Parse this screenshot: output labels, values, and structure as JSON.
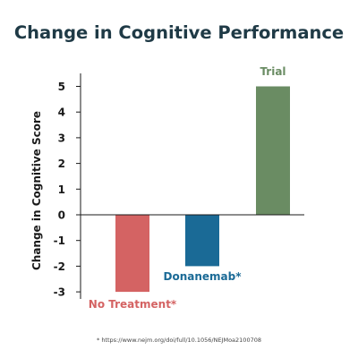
{
  "chart_data": {
    "type": "bar",
    "title": "Change in Cognitive Performance",
    "xlabel": "",
    "ylabel": "Change in Cognitive Score",
    "ylim": [
      -3.5,
      5.5
    ],
    "yticks": [
      "5",
      "4",
      "3",
      "2",
      "1",
      "0",
      "-1",
      "-2",
      "-3"
    ],
    "categories": [
      "No Treatment*",
      "Donanemab*",
      "Trial"
    ],
    "values": [
      -3,
      -2,
      5
    ],
    "colors": [
      "#d46363",
      "#1a6a96",
      "#6a8c63"
    ],
    "label_colors": [
      "#d46363",
      "#1a6a96",
      "#6a8c63"
    ],
    "grid": false,
    "legend": "none"
  },
  "footnote": "* https://www.nejm.org/doi/full/10.1056/NEJMoa2100708",
  "colors": {
    "title": "#1f3a46",
    "axis": "#1a1a1a"
  }
}
